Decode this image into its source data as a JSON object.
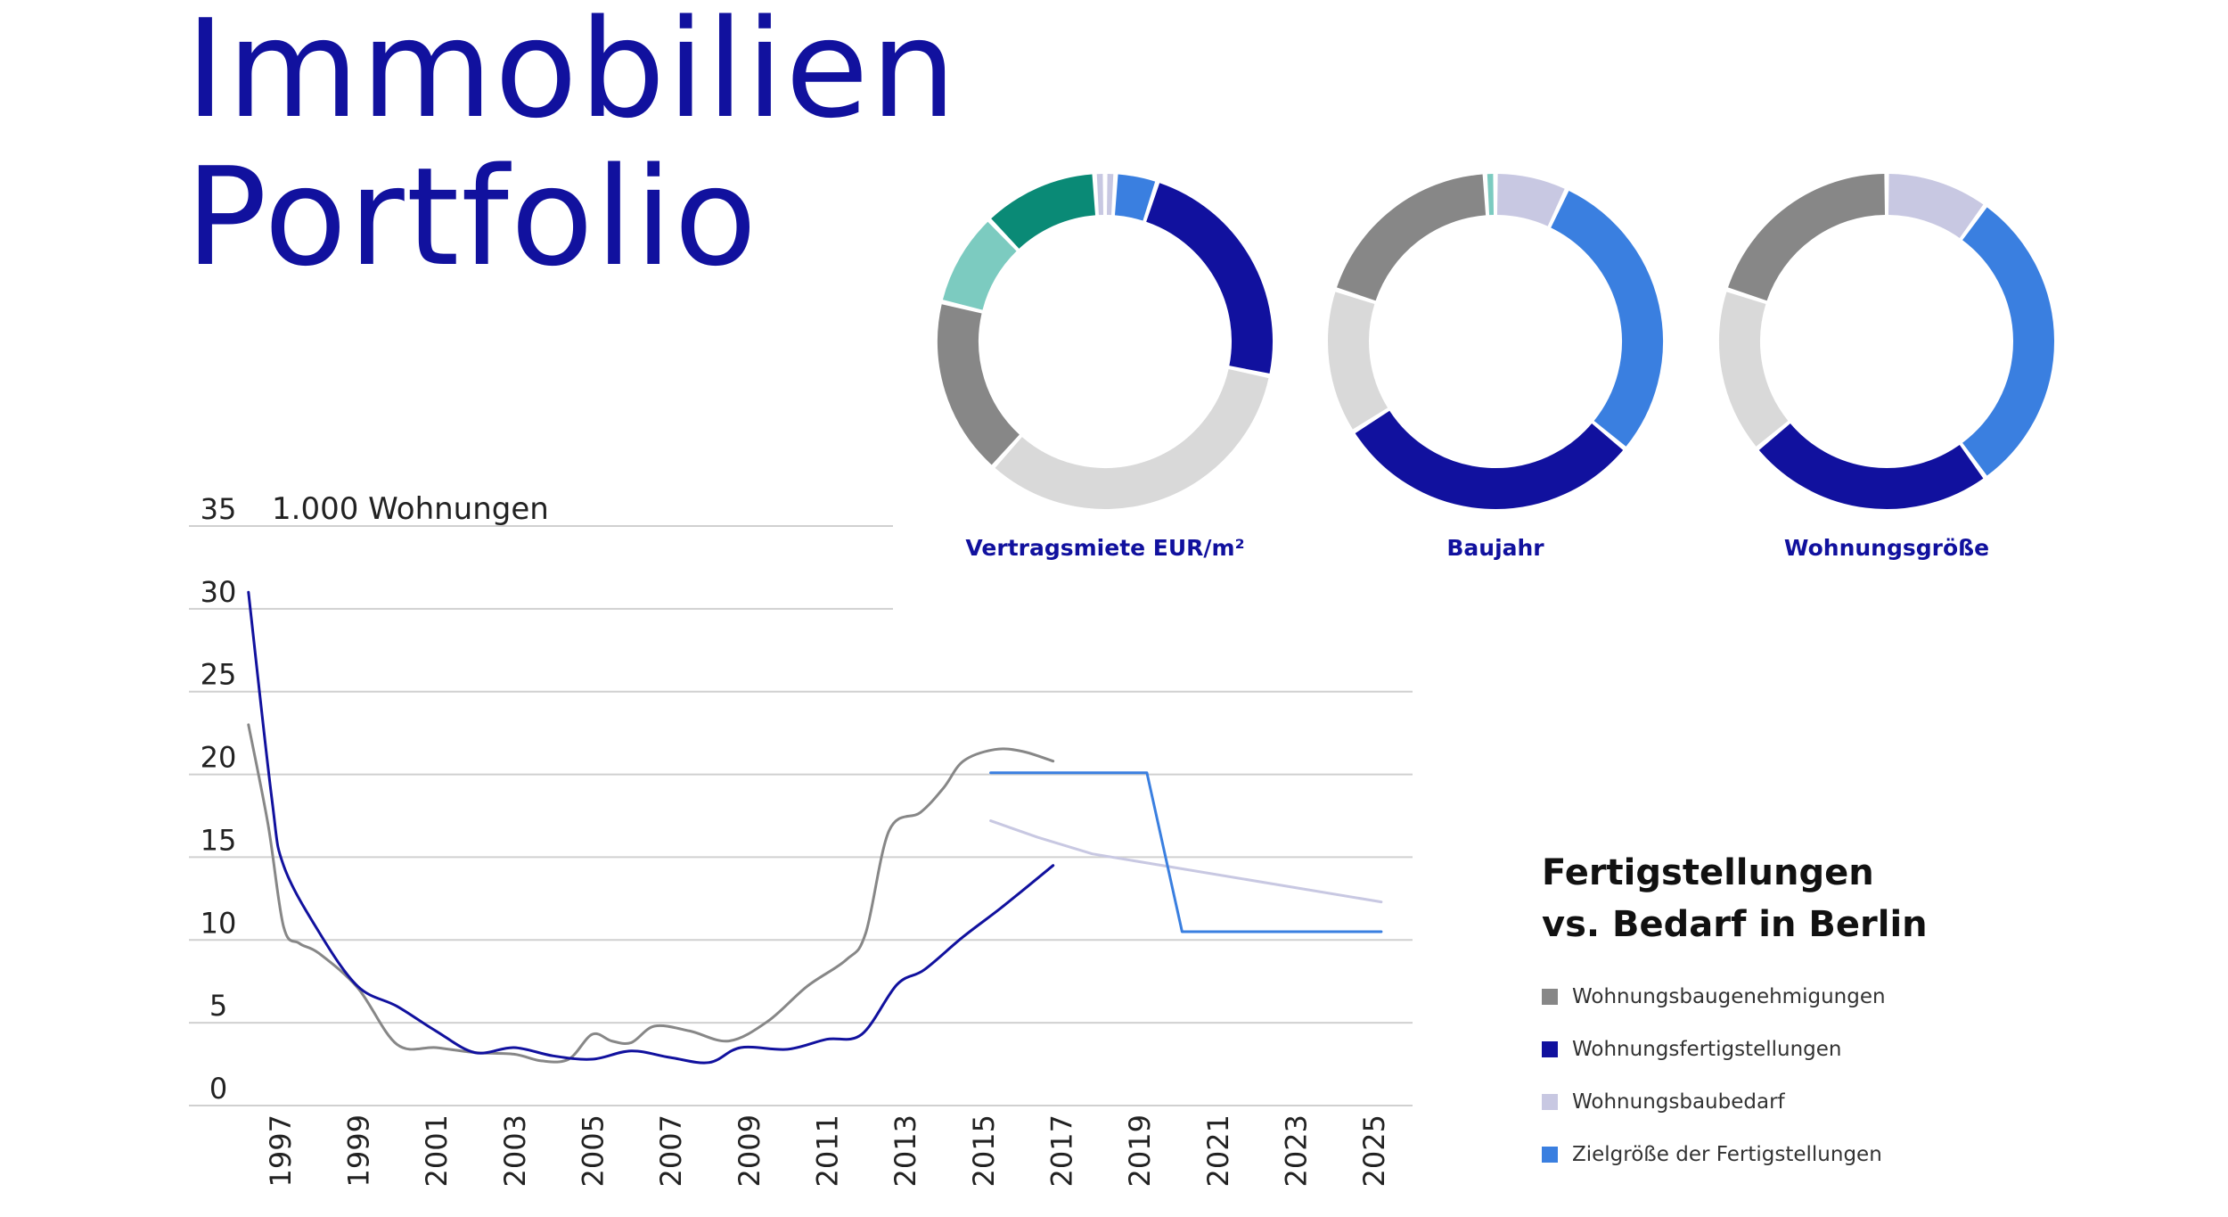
{
  "title": {
    "line1": "Immobilien",
    "line2": "Portfolio"
  },
  "colors": {
    "navy": "#11119e",
    "blue": "#3a7fe0",
    "lavender": "#c8c8e2",
    "gray": "#878787",
    "light_gray": "#d9d9d9",
    "teal_dark": "#0a8a76",
    "teal_light": "#7ccbc0",
    "grid": "#d0d0d0"
  },
  "donuts": [
    {
      "label": "Vertragsmiete EUR/m²",
      "segments": [
        {
          "color": "#c8c8e2",
          "pct": 1
        },
        {
          "color": "#3a7fe0",
          "pct": 4
        },
        {
          "color": "#11119e",
          "pct": 23
        },
        {
          "color": "#d9d9d9",
          "pct": 33
        },
        {
          "color": "#878787",
          "pct": 17
        },
        {
          "color": "#7ccbc0",
          "pct": 9
        },
        {
          "color": "#0a8a76",
          "pct": 11
        },
        {
          "color": "#c8c8e2",
          "pct": 1
        }
      ]
    },
    {
      "label": "Baujahr",
      "segments": [
        {
          "color": "#c8c8e2",
          "pct": 7
        },
        {
          "color": "#3a7fe0",
          "pct": 29
        },
        {
          "color": "#11119e",
          "pct": 30
        },
        {
          "color": "#d9d9d9",
          "pct": 14
        },
        {
          "color": "#878787",
          "pct": 19
        },
        {
          "color": "#7ccbc0",
          "pct": 1
        }
      ]
    },
    {
      "label": "Wohnungsgröße",
      "segments": [
        {
          "color": "#c8c8e2",
          "pct": 10
        },
        {
          "color": "#3a7fe0",
          "pct": 30
        },
        {
          "color": "#11119e",
          "pct": 24
        },
        {
          "color": "#d9d9d9",
          "pct": 16
        },
        {
          "color": "#878787",
          "pct": 20
        }
      ]
    }
  ],
  "chart_data": [
    {
      "type": "pie",
      "style": "donut",
      "title": "Vertragsmiete EUR/m²",
      "slices": [
        {
          "color": "lavender",
          "value": 1
        },
        {
          "color": "blue",
          "value": 4
        },
        {
          "color": "navy",
          "value": 23
        },
        {
          "color": "light_gray",
          "value": 33
        },
        {
          "color": "gray",
          "value": 17
        },
        {
          "color": "teal_light",
          "value": 9
        },
        {
          "color": "teal_dark",
          "value": 11
        },
        {
          "color": "lavender",
          "value": 1
        }
      ]
    },
    {
      "type": "pie",
      "style": "donut",
      "title": "Baujahr",
      "slices": [
        {
          "color": "lavender",
          "value": 7
        },
        {
          "color": "blue",
          "value": 29
        },
        {
          "color": "navy",
          "value": 30
        },
        {
          "color": "light_gray",
          "value": 14
        },
        {
          "color": "gray",
          "value": 19
        },
        {
          "color": "teal_light",
          "value": 1
        }
      ]
    },
    {
      "type": "pie",
      "style": "donut",
      "title": "Wohnungsgröße",
      "slices": [
        {
          "color": "lavender",
          "value": 10
        },
        {
          "color": "blue",
          "value": 30
        },
        {
          "color": "navy",
          "value": 24
        },
        {
          "color": "light_gray",
          "value": 16
        },
        {
          "color": "gray",
          "value": 20
        }
      ]
    },
    {
      "type": "line",
      "title": "Fertigstellungen vs. Bedarf in Berlin",
      "ylabel": "1.000 Wohnungen",
      "ylim": [
        0,
        35
      ],
      "yticks": [
        0,
        5,
        10,
        15,
        20,
        25,
        30,
        35
      ],
      "xlim": [
        1996,
        2026
      ],
      "xticks": [
        "1997",
        "1999",
        "2001",
        "2003",
        "2005",
        "2007",
        "2009",
        "2011",
        "2013",
        "2015",
        "2017",
        "2019",
        "2021",
        "2023",
        "2025"
      ],
      "grid": true,
      "series": [
        {
          "name": "Wohnungsbaugenehmigungen",
          "color": "#878787",
          "smooth": true,
          "points": [
            [
              1996.2,
              23
            ],
            [
              1996.7,
              17
            ],
            [
              1997.1,
              10.8
            ],
            [
              1997.5,
              9.8
            ],
            [
              1998,
              9.2
            ],
            [
              1999,
              7.1
            ],
            [
              2000,
              3.7
            ],
            [
              2001,
              3.5
            ],
            [
              2002,
              3.2
            ],
            [
              2003,
              3.1
            ],
            [
              2003.7,
              2.7
            ],
            [
              2004.4,
              2.8
            ],
            [
              2005,
              4.3
            ],
            [
              2005.5,
              3.9
            ],
            [
              2006,
              3.8
            ],
            [
              2006.6,
              4.8
            ],
            [
              2007.5,
              4.5
            ],
            [
              2008.5,
              3.9
            ],
            [
              2009.5,
              5.1
            ],
            [
              2010.5,
              7.2
            ],
            [
              2011.5,
              8.8
            ],
            [
              2012,
              10.4
            ],
            [
              2012.6,
              16.6
            ],
            [
              2013.4,
              17.7
            ],
            [
              2014,
              19.2
            ],
            [
              2014.5,
              20.8
            ],
            [
              2015.3,
              21.5
            ],
            [
              2016,
              21.4
            ],
            [
              2016.8,
              20.8
            ]
          ]
        },
        {
          "name": "Wohnungsfertigstellungen",
          "color": "#11119e",
          "smooth": true,
          "points": [
            [
              1996.2,
              31
            ],
            [
              1996.8,
              18.5
            ],
            [
              1997.1,
              14.5
            ],
            [
              1998,
              10.5
            ],
            [
              1999,
              7.2
            ],
            [
              2000,
              6
            ],
            [
              2001,
              4.5
            ],
            [
              2002,
              3.2
            ],
            [
              2003,
              3.5
            ],
            [
              2004,
              3
            ],
            [
              2005,
              2.8
            ],
            [
              2006,
              3.3
            ],
            [
              2007,
              2.9
            ],
            [
              2008,
              2.6
            ],
            [
              2008.8,
              3.5
            ],
            [
              2010,
              3.4
            ],
            [
              2011,
              4
            ],
            [
              2011.9,
              4.3
            ],
            [
              2012.8,
              7.3
            ],
            [
              2013.5,
              8.2
            ],
            [
              2014.5,
              10.2
            ],
            [
              2015.5,
              12
            ],
            [
              2016.8,
              14.5
            ]
          ]
        },
        {
          "name": "Wohnungsbaubedarf",
          "color": "#c8c8e2",
          "smooth": false,
          "points": [
            [
              2015.2,
              17.2
            ],
            [
              2016.4,
              16.2
            ],
            [
              2017.8,
              15.2
            ],
            [
              2025.2,
              12.3
            ]
          ]
        },
        {
          "name": "Zielgröße der Fertigstellungen",
          "color": "#3a7fe0",
          "smooth": false,
          "points": [
            [
              2015.2,
              20.1
            ],
            [
              2019.2,
              20.1
            ],
            [
              2020.1,
              10.5
            ],
            [
              2025.2,
              10.5
            ]
          ]
        }
      ]
    }
  ],
  "legend_title": {
    "line1": "Fertigstellungen",
    "line2": "vs. Bedarf in Berlin"
  },
  "legend": [
    {
      "label": "Wohnungsbaugenehmigungen",
      "color": "#878787"
    },
    {
      "label": "Wohnungsfertigstellungen",
      "color": "#11119e"
    },
    {
      "label": "Wohnungsbaubedarf",
      "color": "#c8c8e2"
    },
    {
      "label": "Zielgröße der Fertigstellungen",
      "color": "#3a7fe0"
    }
  ]
}
